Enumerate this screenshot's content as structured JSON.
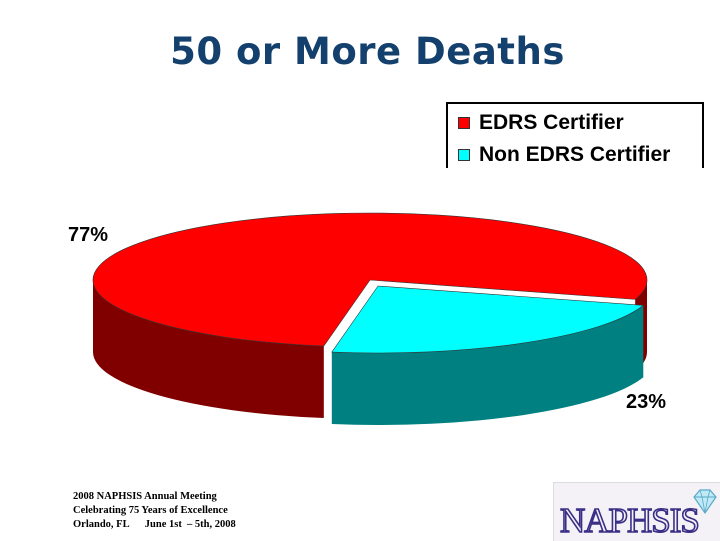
{
  "slide": {
    "title": "50 or More Deaths"
  },
  "chart_data": {
    "type": "pie",
    "style": "3d-exploded-slice",
    "slices": [
      {
        "label": "EDRS Certifier",
        "value": 77,
        "display": "77%",
        "color": "#ff0000",
        "side_color": "#800000"
      },
      {
        "label": "Non EDRS Certifier",
        "value": 23,
        "display": "23%",
        "color": "#00ffff",
        "side_color": "#008080"
      }
    ],
    "legend": {
      "placement": "top-right",
      "items": [
        "EDRS Certifier",
        "Non EDRS Certifier"
      ]
    }
  },
  "footer": {
    "line1": "2008 NAPHSIS Annual Meeting",
    "line2": "Celebrating 75 Years of Excellence",
    "line3": "Orlando, FL      June 1st  – 5th, 2008"
  },
  "logo": {
    "text": "NAPHSIS",
    "icon": "diamond-icon"
  }
}
